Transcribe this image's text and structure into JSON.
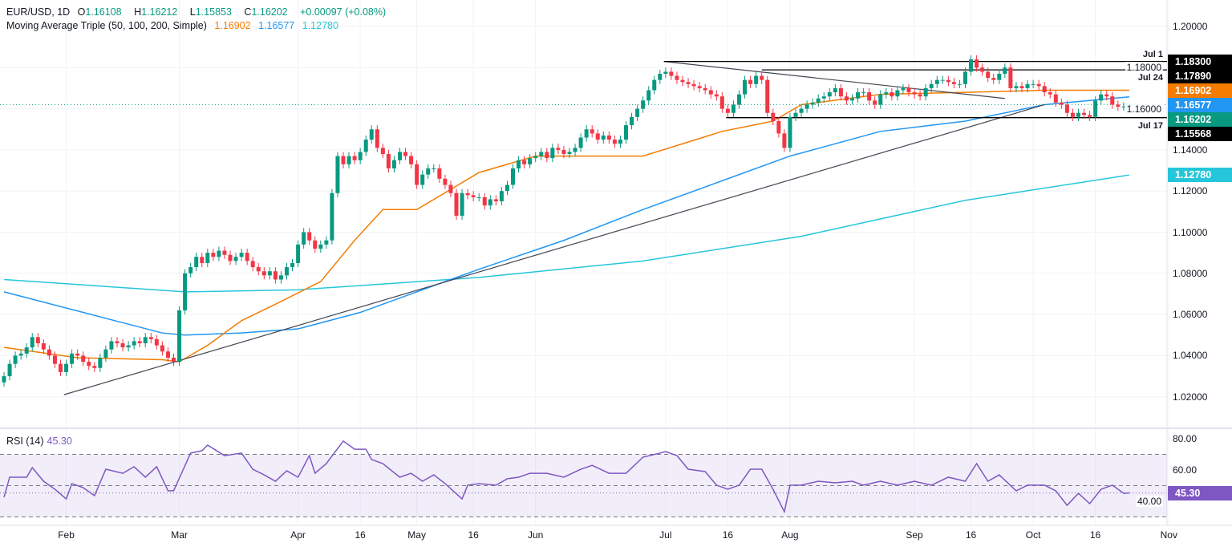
{
  "header": {
    "symbol": "EUR/USD, 1D",
    "open_label": "O",
    "open": "1.16108",
    "high_label": "H",
    "high": "1.16212",
    "low_label": "L",
    "low": "1.15853",
    "close_label": "C",
    "close": "1.16202",
    "change": "+0.00097 (+0.08%)",
    "ma_title": "Moving Average Triple (50, 100, 200, Simple)",
    "ma50": "1.16902",
    "ma100": "1.16577",
    "ma200": "1.12780"
  },
  "rsi": {
    "title": "RSI (14)",
    "value": "45.30",
    "axis": [
      "80.00",
      "60.00",
      "40.00"
    ]
  },
  "colors": {
    "up": "#089981",
    "down": "#f23645",
    "ma50": "#f57c00",
    "ma100": "#2196f3",
    "ma200": "#26c6da",
    "rsi": "#7e57c2"
  },
  "price_tags": [
    {
      "text": "1.18300",
      "value": 1.183,
      "color": "#000000"
    },
    {
      "text": "1.17890",
      "value": 1.1789,
      "color": "#000000"
    },
    {
      "text": "1.16902",
      "value": 1.16902,
      "color": "#f57c00"
    },
    {
      "text": "1.16577",
      "value": 1.16577,
      "color": "#2196f3"
    },
    {
      "text": "1.16202",
      "value": 1.16202,
      "color": "#089981"
    },
    {
      "text": "1.15568",
      "value": 1.15568,
      "color": "#000000"
    },
    {
      "text": "1.12780",
      "value": 1.1278,
      "color": "#26c6da"
    }
  ],
  "line_labels": [
    {
      "text": "Jul 1",
      "value": 1.183
    },
    {
      "text": "Jul 24",
      "value": 1.1789
    },
    {
      "text": "Jul 17",
      "value": 1.15568
    }
  ],
  "chart_data": {
    "type": "candlestick",
    "y_ticks": [
      "1.20000",
      "1.18000",
      "1.16000",
      "1.14000",
      "1.12000",
      "1.10000",
      "1.08000",
      "1.06000",
      "1.04000",
      "1.02000"
    ],
    "ylim": [
      1.0,
      1.2
    ],
    "x_ticks": [
      {
        "t": "Feb",
        "d": 11
      },
      {
        "t": "Mar",
        "d": 31
      },
      {
        "t": "Apr",
        "d": 52
      },
      {
        "t": "16",
        "d": 63
      },
      {
        "t": "May",
        "d": 73
      },
      {
        "t": "16",
        "d": 83
      },
      {
        "t": "Jun",
        "d": 94
      },
      {
        "t": "Jul",
        "d": 117
      },
      {
        "t": "16",
        "d": 128
      },
      {
        "t": "Aug",
        "d": 139
      },
      {
        "t": "Sep",
        "d": 161
      },
      {
        "t": "16",
        "d": 171
      },
      {
        "t": "Oct",
        "d": 182
      },
      {
        "t": "16",
        "d": 193
      },
      {
        "t": "Nov",
        "d": 206
      }
    ],
    "last_candle": {
      "open": 1.16108,
      "high": 1.16212,
      "low": 1.15853,
      "close": 1.16202
    },
    "closes": [
      1.03,
      1.036,
      1.04,
      1.041,
      1.044,
      1.049,
      1.046,
      1.043,
      1.04,
      1.036,
      1.032,
      1.036,
      1.041,
      1.04,
      1.037,
      1.035,
      1.034,
      1.039,
      1.043,
      1.047,
      1.046,
      1.044,
      1.045,
      1.047,
      1.046,
      1.049,
      1.048,
      1.045,
      1.042,
      1.039,
      1.037,
      1.062,
      1.08,
      1.083,
      1.088,
      1.085,
      1.09,
      1.088,
      1.091,
      1.089,
      1.086,
      1.088,
      1.09,
      1.086,
      1.083,
      1.081,
      1.079,
      1.081,
      1.077,
      1.079,
      1.083,
      1.085,
      1.094,
      1.1,
      1.096,
      1.092,
      1.094,
      1.096,
      1.119,
      1.137,
      1.133,
      1.137,
      1.135,
      1.139,
      1.145,
      1.15,
      1.141,
      1.138,
      1.131,
      1.135,
      1.139,
      1.137,
      1.133,
      1.123,
      1.128,
      1.131,
      1.131,
      1.126,
      1.123,
      1.119,
      1.108,
      1.119,
      1.118,
      1.117,
      1.117,
      1.113,
      1.116,
      1.115,
      1.12,
      1.123,
      1.131,
      1.135,
      1.133,
      1.136,
      1.137,
      1.139,
      1.136,
      1.141,
      1.14,
      1.138,
      1.139,
      1.141,
      1.146,
      1.15,
      1.148,
      1.145,
      1.147,
      1.145,
      1.143,
      1.145,
      1.152,
      1.156,
      1.16,
      1.164,
      1.169,
      1.174,
      1.177,
      1.178,
      1.176,
      1.174,
      1.173,
      1.172,
      1.171,
      1.17,
      1.169,
      1.167,
      1.166,
      1.16,
      1.158,
      1.162,
      1.167,
      1.174,
      1.172,
      1.176,
      1.174,
      1.158,
      1.154,
      1.148,
      1.141,
      1.156,
      1.158,
      1.16,
      1.162,
      1.163,
      1.165,
      1.166,
      1.168,
      1.17,
      1.166,
      1.164,
      1.165,
      1.168,
      1.168,
      1.164,
      1.162,
      1.167,
      1.168,
      1.166,
      1.169,
      1.17,
      1.168,
      1.167,
      1.166,
      1.17,
      1.172,
      1.174,
      1.174,
      1.173,
      1.172,
      1.172,
      1.178,
      1.184,
      1.18,
      1.178,
      1.175,
      1.174,
      1.177,
      1.18,
      1.17,
      1.171,
      1.17,
      1.172,
      1.172,
      1.171,
      1.168,
      1.167,
      1.163,
      1.162,
      1.158,
      1.156,
      1.158,
      1.157,
      1.156,
      1.164,
      1.167,
      1.166,
      1.162,
      1.161,
      1.1611,
      1.16202
    ],
    "ma50": [
      [
        0,
        1.044
      ],
      [
        13,
        1.039
      ],
      [
        28,
        1.038
      ],
      [
        31,
        1.037
      ],
      [
        36,
        1.045
      ],
      [
        42,
        1.057
      ],
      [
        48,
        1.065
      ],
      [
        56,
        1.076
      ],
      [
        62,
        1.096
      ],
      [
        67,
        1.111
      ],
      [
        73,
        1.111
      ],
      [
        84,
        1.129
      ],
      [
        94,
        1.137
      ],
      [
        113,
        1.137
      ],
      [
        127,
        1.149
      ],
      [
        136,
        1.154
      ],
      [
        141,
        1.162
      ],
      [
        155,
        1.167
      ],
      [
        170,
        1.168
      ],
      [
        184,
        1.169
      ],
      [
        199,
        1.169
      ]
    ],
    "ma100": [
      [
        0,
        1.071
      ],
      [
        14,
        1.061
      ],
      [
        28,
        1.051
      ],
      [
        32,
        1.05
      ],
      [
        42,
        1.051
      ],
      [
        52,
        1.053
      ],
      [
        63,
        1.061
      ],
      [
        73,
        1.071
      ],
      [
        84,
        1.082
      ],
      [
        99,
        1.096
      ],
      [
        113,
        1.111
      ],
      [
        127,
        1.125
      ],
      [
        139,
        1.137
      ],
      [
        155,
        1.149
      ],
      [
        170,
        1.154
      ],
      [
        184,
        1.162
      ],
      [
        199,
        1.1658
      ]
    ],
    "ma200": [
      [
        0,
        1.077
      ],
      [
        32,
        1.071
      ],
      [
        52,
        1.072
      ],
      [
        84,
        1.078
      ],
      [
        113,
        1.086
      ],
      [
        141,
        1.098
      ],
      [
        170,
        1.1155
      ],
      [
        199,
        1.1278
      ]
    ],
    "trendlines": [
      [
        [
          10.6,
          1.021
        ],
        [
          184,
          1.162
        ]
      ],
      [
        [
          116.7,
          1.183
        ],
        [
          177,
          1.165
        ]
      ]
    ],
    "horizontals": [
      [
        116.7,
        1.183
      ],
      [
        134,
        1.1789
      ],
      [
        127.7,
        1.15568
      ]
    ],
    "rsi": {
      "bands": [
        70,
        50,
        30
      ],
      "current": 45.3,
      "points": [
        [
          0,
          42.6
        ],
        [
          1,
          55.4
        ],
        [
          4,
          55.4
        ],
        [
          5,
          61.5
        ],
        [
          7,
          52.8
        ],
        [
          9,
          47.7
        ],
        [
          11,
          41.5
        ],
        [
          12,
          51.3
        ],
        [
          14,
          48.7
        ],
        [
          16,
          43.6
        ],
        [
          18,
          60.5
        ],
        [
          21,
          57.9
        ],
        [
          23,
          62.1
        ],
        [
          25,
          55.4
        ],
        [
          27,
          62.1
        ],
        [
          29,
          46.7
        ],
        [
          30,
          46.7
        ],
        [
          33,
          70.8
        ],
        [
          35,
          72.3
        ],
        [
          36,
          75.9
        ],
        [
          39,
          69.2
        ],
        [
          42,
          70.8
        ],
        [
          44,
          60.5
        ],
        [
          46,
          56.9
        ],
        [
          48,
          52.8
        ],
        [
          50,
          59.5
        ],
        [
          52,
          55.4
        ],
        [
          54,
          69.2
        ],
        [
          55,
          57.9
        ],
        [
          57,
          64.1
        ],
        [
          60,
          78.5
        ],
        [
          62,
          73.3
        ],
        [
          64,
          73.3
        ],
        [
          65,
          66.7
        ],
        [
          67,
          64.1
        ],
        [
          70,
          55.4
        ],
        [
          72,
          57.9
        ],
        [
          74,
          52.8
        ],
        [
          76,
          56.9
        ],
        [
          78,
          51.3
        ],
        [
          81,
          41.5
        ],
        [
          82,
          50.3
        ],
        [
          84,
          51.3
        ],
        [
          87,
          50.3
        ],
        [
          89,
          54.4
        ],
        [
          91,
          55.4
        ],
        [
          93,
          57.9
        ],
        [
          96,
          57.9
        ],
        [
          99,
          55.4
        ],
        [
          102,
          60.5
        ],
        [
          104,
          63
        ],
        [
          107,
          57.9
        ],
        [
          110,
          57.9
        ],
        [
          113,
          68.2
        ],
        [
          116,
          70.8
        ],
        [
          117,
          71.8
        ],
        [
          119,
          69.2
        ],
        [
          121,
          60.5
        ],
        [
          124,
          59.0
        ],
        [
          126,
          50.3
        ],
        [
          128,
          47.7
        ],
        [
          130,
          50.3
        ],
        [
          132,
          60.5
        ],
        [
          134,
          60.5
        ],
        [
          136,
          47.7
        ],
        [
          138,
          33.3
        ],
        [
          139,
          50.3
        ],
        [
          141,
          50.3
        ],
        [
          144,
          52.8
        ],
        [
          147,
          51.8
        ],
        [
          150,
          52.8
        ],
        [
          152,
          50.3
        ],
        [
          155,
          52.8
        ],
        [
          158,
          50.3
        ],
        [
          161,
          52.8
        ],
        [
          164,
          50.3
        ],
        [
          167,
          55.4
        ],
        [
          170,
          52.8
        ],
        [
          172,
          64.1
        ],
        [
          174,
          52.8
        ],
        [
          176,
          56.9
        ],
        [
          179,
          46.7
        ],
        [
          181,
          50.3
        ],
        [
          184,
          50.3
        ],
        [
          186,
          46.7
        ],
        [
          188,
          37.4
        ],
        [
          190,
          45.1
        ],
        [
          192,
          38.5
        ],
        [
          194,
          47.7
        ],
        [
          196,
          50.3
        ],
        [
          198,
          45.1
        ],
        [
          199,
          45.3
        ]
      ]
    }
  }
}
